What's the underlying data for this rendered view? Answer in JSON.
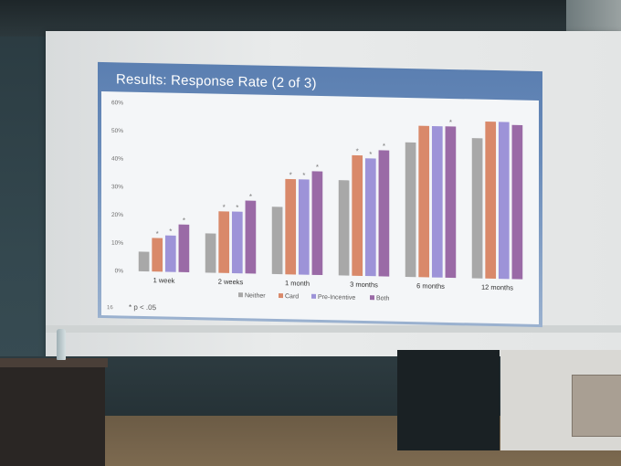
{
  "slide": {
    "title": "Results: Response Rate (2 of 3)",
    "page_number": "16",
    "footnote": "* p < .05"
  },
  "chart_data": {
    "type": "bar",
    "title": "Results: Response Rate (2 of 3)",
    "xlabel": "",
    "ylabel": "",
    "ylim": [
      0,
      60
    ],
    "yticks": [
      "0%",
      "10%",
      "20%",
      "30%",
      "40%",
      "50%",
      "60%"
    ],
    "grid": false,
    "legend_position": "bottom",
    "categories": [
      "1 week",
      "2 weeks",
      "1 month",
      "3 months",
      "6 months",
      "12 months"
    ],
    "series": [
      {
        "name": "Neither",
        "color": "#a8a8a8",
        "values": [
          7,
          14,
          24,
          34,
          48,
          50
        ],
        "significant": [
          false,
          false,
          false,
          false,
          false,
          false
        ]
      },
      {
        "name": "Card",
        "color": "#d9896a",
        "values": [
          12,
          22,
          34,
          43,
          54,
          56
        ],
        "significant": [
          true,
          true,
          true,
          true,
          false,
          false
        ]
      },
      {
        "name": "Pre-Incentive",
        "color": "#9d93d8",
        "values": [
          13,
          22,
          34,
          42,
          54,
          56
        ],
        "significant": [
          true,
          true,
          true,
          true,
          false,
          false
        ]
      },
      {
        "name": "Both",
        "color": "#9a6aa6",
        "values": [
          17,
          26,
          37,
          45,
          54,
          55
        ],
        "significant": [
          true,
          true,
          true,
          true,
          true,
          false
        ]
      }
    ],
    "significance_marker": "*"
  }
}
